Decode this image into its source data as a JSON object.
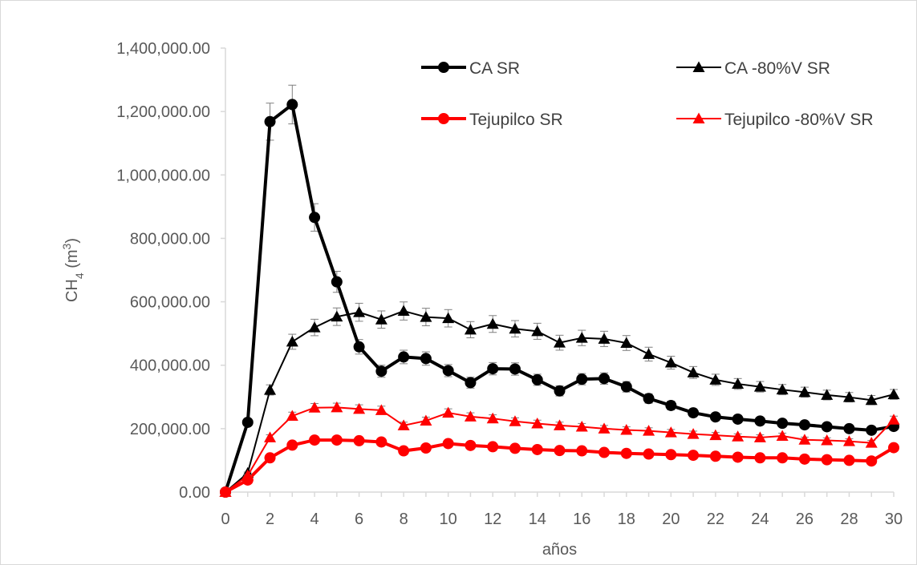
{
  "chart_data": {
    "type": "line",
    "title": "",
    "xlabel": "años",
    "ylabel": {
      "base": "CH",
      "sub": "4",
      "unit_open": " (m",
      "sup": "3",
      "unit_close": ")"
    },
    "x": [
      0,
      1,
      2,
      3,
      4,
      5,
      6,
      7,
      8,
      9,
      10,
      11,
      12,
      13,
      14,
      15,
      16,
      17,
      18,
      19,
      20,
      21,
      22,
      23,
      24,
      25,
      26,
      27,
      28,
      29,
      30
    ],
    "x_ticks": [
      0,
      2,
      4,
      6,
      8,
      10,
      12,
      14,
      16,
      18,
      20,
      22,
      24,
      26,
      28,
      30
    ],
    "x_tick_labels": [
      "0",
      "2",
      "4",
      "6",
      "8",
      "10",
      "12",
      "14",
      "16",
      "18",
      "20",
      "22",
      "24",
      "26",
      "28",
      "30"
    ],
    "xlim": [
      0,
      30
    ],
    "ylim": [
      0,
      1400000
    ],
    "y_ticks": [
      0,
      200000,
      400000,
      600000,
      800000,
      1000000,
      1200000,
      1400000
    ],
    "y_tick_labels": [
      "0.00",
      "200,000.00",
      "400,000.00",
      "600,000.00",
      "800,000.00",
      "1,000,000.00",
      "1,200,000.00",
      "1,400,000.00"
    ],
    "grid": false,
    "error_bars": true,
    "error_fraction": 0.05,
    "legend_position": "top-right",
    "series": [
      {
        "name": "CA SR",
        "color": "#000000",
        "marker": "circle",
        "line_style": "thick",
        "values": [
          0,
          220000,
          1168000,
          1222000,
          866000,
          663000,
          458000,
          381000,
          426000,
          421000,
          383000,
          345000,
          389000,
          388000,
          354000,
          319000,
          356000,
          358000,
          332000,
          295000,
          273000,
          250000,
          237000,
          230000,
          224000,
          217000,
          212000,
          206000,
          200000,
          195000,
          207000
        ]
      },
      {
        "name": "CA -80%V SR",
        "color": "#000000",
        "marker": "triangle",
        "line_style": "thin",
        "values": [
          0,
          60000,
          322000,
          474000,
          519000,
          553000,
          567000,
          544000,
          571000,
          552000,
          548000,
          512000,
          530000,
          515000,
          507000,
          471000,
          486000,
          483000,
          470000,
          435000,
          408000,
          377000,
          354000,
          341000,
          332000,
          323000,
          315000,
          306000,
          299000,
          290000,
          308000
        ]
      },
      {
        "name": "Tejupilco SR",
        "color": "#ff0000",
        "marker": "circle",
        "line_style": "thick",
        "values": [
          0,
          38000,
          108000,
          148000,
          164000,
          164000,
          162000,
          158000,
          130000,
          139000,
          153000,
          147000,
          143000,
          138000,
          134000,
          131000,
          130000,
          125000,
          122000,
          120000,
          118000,
          116000,
          113000,
          110000,
          108000,
          108000,
          104000,
          102000,
          100000,
          98000,
          140000
        ]
      },
      {
        "name": "Tejupilco -80%V SR",
        "color": "#ff0000",
        "marker": "triangle",
        "line_style": "thin",
        "values": [
          0,
          52000,
          172000,
          240000,
          266000,
          267000,
          262000,
          258000,
          210000,
          225000,
          250000,
          238000,
          232000,
          223000,
          216000,
          210000,
          206000,
          200000,
          196000,
          193000,
          188000,
          183000,
          179000,
          175000,
          172000,
          177000,
          165000,
          163000,
          160000,
          155000,
          228000
        ]
      }
    ]
  }
}
